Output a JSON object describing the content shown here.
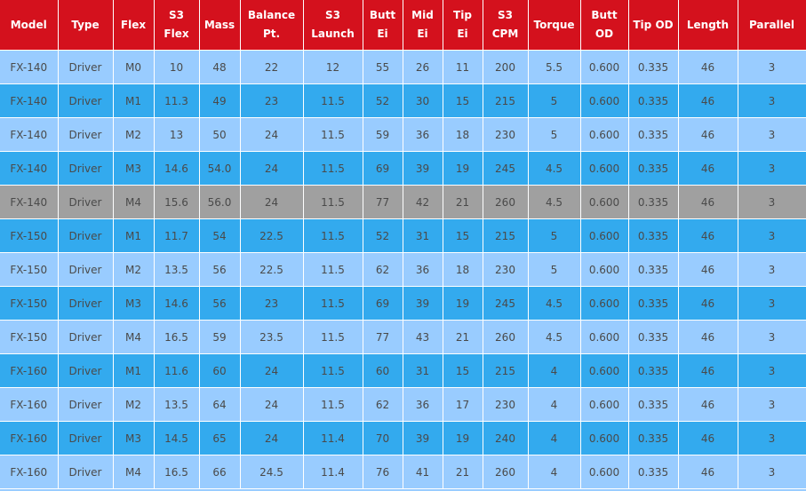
{
  "table": {
    "headers": [
      [
        "Model"
      ],
      [
        "Type"
      ],
      [
        "Flex"
      ],
      [
        "S3",
        "Flex"
      ],
      [
        "Mass"
      ],
      [
        "Balance",
        "Pt."
      ],
      [
        "S3",
        "Launch"
      ],
      [
        "Butt",
        "Ei"
      ],
      [
        "Mid",
        "Ei"
      ],
      [
        "Tip",
        "Ei"
      ],
      [
        "S3",
        "CPM"
      ],
      [
        "Torque"
      ],
      [
        "Butt",
        "OD"
      ],
      [
        "Tip OD"
      ],
      [
        "Length"
      ],
      [
        "Parallel"
      ]
    ],
    "rows": [
      {
        "style": "light",
        "cells": [
          "FX-140",
          "Driver",
          "M0",
          "10",
          "48",
          "22",
          "12",
          "55",
          "26",
          "11",
          "200",
          "5.5",
          "0.600",
          "0.335",
          "46",
          "3"
        ]
      },
      {
        "style": "dark",
        "cells": [
          "FX-140",
          "Driver",
          "M1",
          "11.3",
          "49",
          "23",
          "11.5",
          "52",
          "30",
          "15",
          "215",
          "5",
          "0.600",
          "0.335",
          "46",
          "3"
        ]
      },
      {
        "style": "light",
        "cells": [
          "FX-140",
          "Driver",
          "M2",
          "13",
          "50",
          "24",
          "11.5",
          "59",
          "36",
          "18",
          "230",
          "5",
          "0.600",
          "0.335",
          "46",
          "3"
        ]
      },
      {
        "style": "dark",
        "cells": [
          "FX-140",
          "Driver",
          "M3",
          "14.6",
          "54.0",
          "24",
          "11.5",
          "69",
          "39",
          "19",
          "245",
          "4.5",
          "0.600",
          "0.335",
          "46",
          "3"
        ]
      },
      {
        "style": "gray",
        "cells": [
          "FX-140",
          "Driver",
          "M4",
          "15.6",
          "56.0",
          "24",
          "11.5",
          "77",
          "42",
          "21",
          "260",
          "4.5",
          "0.600",
          "0.335",
          "46",
          "3"
        ]
      },
      {
        "style": "dark",
        "cells": [
          "FX-150",
          "Driver",
          "M1",
          "11.7",
          "54",
          "22.5",
          "11.5",
          "52",
          "31",
          "15",
          "215",
          "5",
          "0.600",
          "0.335",
          "46",
          "3"
        ]
      },
      {
        "style": "light",
        "cells": [
          "FX-150",
          "Driver",
          "M2",
          "13.5",
          "56",
          "22.5",
          "11.5",
          "62",
          "36",
          "18",
          "230",
          "5",
          "0.600",
          "0.335",
          "46",
          "3"
        ]
      },
      {
        "style": "dark",
        "cells": [
          "FX-150",
          "Driver",
          "M3",
          "14.6",
          "56",
          "23",
          "11.5",
          "69",
          "39",
          "19",
          "245",
          "4.5",
          "0.600",
          "0.335",
          "46",
          "3"
        ]
      },
      {
        "style": "light",
        "cells": [
          "FX-150",
          "Driver",
          "M4",
          "16.5",
          "59",
          "23.5",
          "11.5",
          "77",
          "43",
          "21",
          "260",
          "4.5",
          "0.600",
          "0.335",
          "46",
          "3"
        ]
      },
      {
        "style": "dark",
        "cells": [
          "FX-160",
          "Driver",
          "M1",
          "11.6",
          "60",
          "24",
          "11.5",
          "60",
          "31",
          "15",
          "215",
          "4",
          "0.600",
          "0.335",
          "46",
          "3"
        ]
      },
      {
        "style": "light",
        "cells": [
          "FX-160",
          "Driver",
          "M2",
          "13.5",
          "64",
          "24",
          "11.5",
          "62",
          "36",
          "17",
          "230",
          "4",
          "0.600",
          "0.335",
          "46",
          "3"
        ]
      },
      {
        "style": "dark",
        "cells": [
          "FX-160",
          "Driver",
          "M3",
          "14.5",
          "65",
          "24",
          "11.4",
          "70",
          "39",
          "19",
          "240",
          "4",
          "0.600",
          "0.335",
          "46",
          "3"
        ]
      },
      {
        "style": "light",
        "cells": [
          "FX-160",
          "Driver",
          "M4",
          "16.5",
          "66",
          "24.5",
          "11.4",
          "76",
          "41",
          "21",
          "260",
          "4",
          "0.600",
          "0.335",
          "46",
          "3"
        ]
      }
    ]
  },
  "colors": {
    "header_bg": "#d4111d",
    "row_light": "#99ccff",
    "row_dark": "#33aaee",
    "row_highlight": "#a0a0a0"
  }
}
